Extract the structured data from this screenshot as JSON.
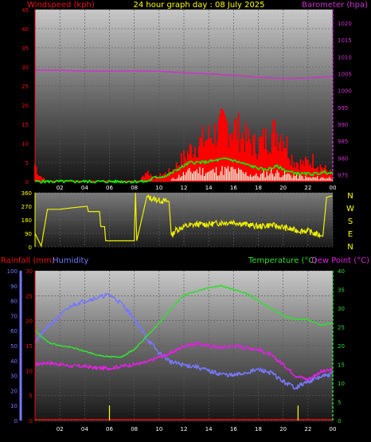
{
  "header": {
    "left_label": "Windspeed (kph)",
    "title": "24 hour graph day : 08 July 2025",
    "right_label": "Barometer (hpa)"
  },
  "mid": {
    "compass": [
      "N",
      "W",
      "S",
      "E",
      "N"
    ]
  },
  "bottom_header": {
    "rain_label": "Rainfall (mm)",
    "hum_label": "Humidity",
    "temp_label": "Temperature (°C)",
    "dew_label": "Dew Point (°C)"
  },
  "colors": {
    "wind": "#ff0000",
    "gust": "#ff0000",
    "avg": "#00ff00",
    "baro": "#cc33cc",
    "dir": "#f0f000",
    "temp": "#33dd33",
    "dew": "#dd22dd",
    "hum": "#7777ff",
    "rain": "#ffff00"
  },
  "chart_data": [
    {
      "type": "line",
      "name": "wind-baro",
      "x_ticks": [
        "02",
        "04",
        "06",
        "08",
        "10",
        "12",
        "14",
        "16",
        "18",
        "20",
        "22",
        "00"
      ],
      "ylabel": "Windspeed (kph)",
      "ylim": [
        0,
        45
      ],
      "y_ticks": [
        0,
        5,
        10,
        15,
        20,
        25,
        30,
        35,
        40,
        45
      ],
      "y2label": "Barometer (hpa)",
      "y2lim": [
        973,
        1024
      ],
      "y2_ticks": [
        975,
        980,
        985,
        990,
        995,
        1000,
        1005,
        1010,
        1015,
        1020
      ],
      "series": [
        {
          "name": "Barometer",
          "axis": "y2",
          "x": [
            0,
            2,
            4,
            6,
            8,
            10,
            12,
            14,
            16,
            18,
            20,
            22,
            24
          ],
          "values": [
            1006,
            1006,
            1005.8,
            1005.7,
            1005.8,
            1005.7,
            1005.3,
            1005,
            1004.5,
            1003.9,
            1003.6,
            1003.7,
            1004.2
          ]
        },
        {
          "name": "Gust",
          "axis": "y",
          "x": [
            0,
            0.3,
            1,
            8.4,
            9,
            9.6,
            11,
            11.8,
            12.8,
            13.8,
            14.6,
            15.4,
            16.2,
            17,
            17.8,
            18.6,
            19.4,
            20,
            20.8,
            21.6,
            22.4,
            23.2,
            24
          ],
          "values": [
            5,
            2,
            0,
            0,
            3,
            1,
            3,
            6,
            10,
            12,
            14,
            16,
            15,
            12,
            10,
            12,
            14,
            13,
            6,
            5,
            6,
            4,
            2
          ]
        },
        {
          "name": "Average",
          "axis": "y",
          "x": [
            0,
            9,
            9.6,
            10.6,
            11.4,
            12.5,
            13.5,
            14.5,
            15.5,
            16.5,
            17.5,
            18.5,
            19.5,
            20.5,
            21.5,
            22.5,
            23.5,
            24
          ],
          "values": [
            0,
            0,
            1,
            1.5,
            3,
            5,
            5,
            5.5,
            6,
            5,
            4,
            3,
            4,
            2.5,
            2,
            2,
            2.5,
            2
          ]
        },
        {
          "name": "Wind",
          "axis": "y",
          "x": [
            0,
            11,
            12,
            13,
            14,
            15,
            16,
            17,
            18,
            19,
            20,
            21,
            22,
            23,
            24
          ],
          "values": [
            0,
            0.5,
            2,
            3,
            2.5,
            3,
            3,
            2,
            1.5,
            2.5,
            2,
            1.5,
            1,
            1,
            1
          ]
        }
      ]
    },
    {
      "type": "line",
      "name": "wind-direction",
      "ylim": [
        0,
        360
      ],
      "y_ticks": [
        0,
        90,
        180,
        270,
        360
      ],
      "x": [
        0,
        0.5,
        1,
        2,
        3,
        4.2,
        4.3,
        5.2,
        5.3,
        5.6,
        5.7,
        8,
        8.1,
        8.2,
        9,
        10,
        10.8,
        11,
        11.3,
        12,
        13,
        14,
        15,
        16,
        17,
        18,
        19,
        20,
        21,
        22,
        22.5,
        23.2,
        23.5,
        24
      ],
      "values": [
        90,
        5,
        250,
        250,
        260,
        270,
        235,
        235,
        135,
        135,
        40,
        40,
        360,
        40,
        330,
        310,
        300,
        70,
        110,
        135,
        150,
        150,
        160,
        165,
        150,
        135,
        145,
        130,
        110,
        105,
        90,
        70,
        330,
        340
      ]
    },
    {
      "type": "line",
      "name": "temp-hum-rain",
      "x_ticks": [
        "02",
        "04",
        "06",
        "08",
        "10",
        "12",
        "14",
        "16",
        "18",
        "20",
        "22",
        "00"
      ],
      "y_rain_ticks": [
        0,
        5,
        10,
        15,
        20,
        25,
        30
      ],
      "ylim_rain": [
        0,
        30
      ],
      "y_hum_ticks": [
        0,
        10,
        20,
        30,
        40,
        50,
        60,
        70,
        80,
        90,
        100
      ],
      "ylim_hum": [
        0,
        100
      ],
      "y_temp_ticks": [
        0,
        5,
        10,
        15,
        20,
        25,
        30,
        35,
        40
      ],
      "ylim_temp": [
        0,
        40
      ],
      "series": [
        {
          "name": "Humidity",
          "axis": "hum",
          "x": [
            0,
            1,
            2,
            3,
            4,
            5,
            6,
            7,
            8,
            9,
            10,
            11,
            12,
            13,
            14,
            15,
            16,
            17,
            18,
            19,
            20,
            21,
            22,
            23,
            24
          ],
          "values": [
            53,
            62,
            70,
            77,
            80,
            82,
            84,
            78,
            68,
            55,
            45,
            39,
            37,
            36,
            33,
            31,
            30,
            32,
            34,
            32,
            26,
            22,
            26,
            29,
            31
          ]
        },
        {
          "name": "Temperature",
          "axis": "temp",
          "x": [
            0,
            1,
            2,
            3,
            4,
            5,
            6,
            7,
            8,
            9,
            10,
            11,
            12,
            13,
            14,
            15,
            16,
            17,
            18,
            19,
            20,
            21,
            22,
            23,
            24
          ],
          "values": [
            24,
            21,
            20,
            19.5,
            18.5,
            17.5,
            17,
            17,
            19,
            22.5,
            26,
            30,
            33.5,
            34.5,
            35.5,
            36,
            35,
            34,
            32,
            30,
            28,
            27,
            27,
            25.5,
            26
          ]
        },
        {
          "name": "Dew Point",
          "axis": "temp",
          "x": [
            0,
            1,
            2,
            3,
            4,
            5,
            6,
            7,
            8,
            9,
            10,
            11,
            12,
            13,
            14,
            15,
            16,
            17,
            18,
            19,
            20,
            21,
            22,
            23,
            24
          ],
          "values": [
            15,
            15.5,
            15,
            14.5,
            14.5,
            14,
            14,
            14.5,
            15,
            15.5,
            17,
            18,
            20,
            20.5,
            20,
            19.5,
            20,
            19.5,
            19,
            17.5,
            15,
            12,
            11,
            13,
            13.5
          ]
        },
        {
          "name": "Rain",
          "axis": "rain",
          "x": [
            0,
            24
          ],
          "values": [
            0,
            0
          ]
        }
      ]
    }
  ]
}
